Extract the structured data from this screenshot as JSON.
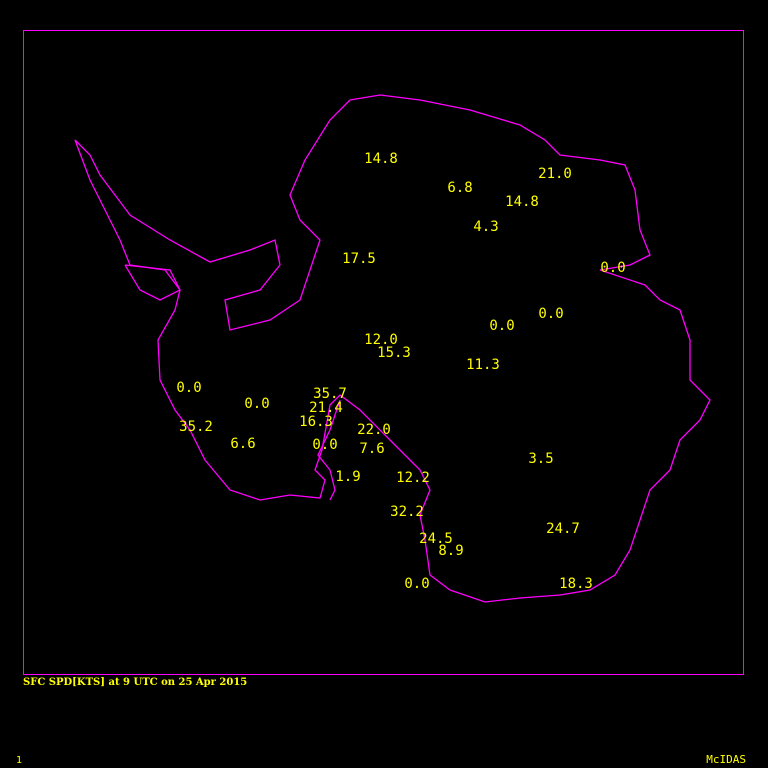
{
  "caption": "SFC SPD[KTS] at 9 UTC on 25 Apr 2015",
  "frame_number": "1",
  "brand": "McIDAS",
  "colors": {
    "background": "#000000",
    "coastline": "#ff00ff",
    "text": "#ffff00"
  },
  "observations": [
    "14.8",
    "6.8",
    "21.0",
    "14.8",
    "4.3",
    "17.5",
    "0.0",
    "0.0",
    "0.0",
    "12.0",
    "15.3",
    "11.3",
    "0.0",
    "0.0",
    "35.7",
    "21.4",
    "16.3",
    "35.2",
    "6.6",
    "0.0",
    "22.0",
    "7.6",
    "3.5",
    "1.9",
    "12.2",
    "32.2",
    "24.7",
    "24.5",
    "8.9",
    "0.0",
    "18.3"
  ]
}
